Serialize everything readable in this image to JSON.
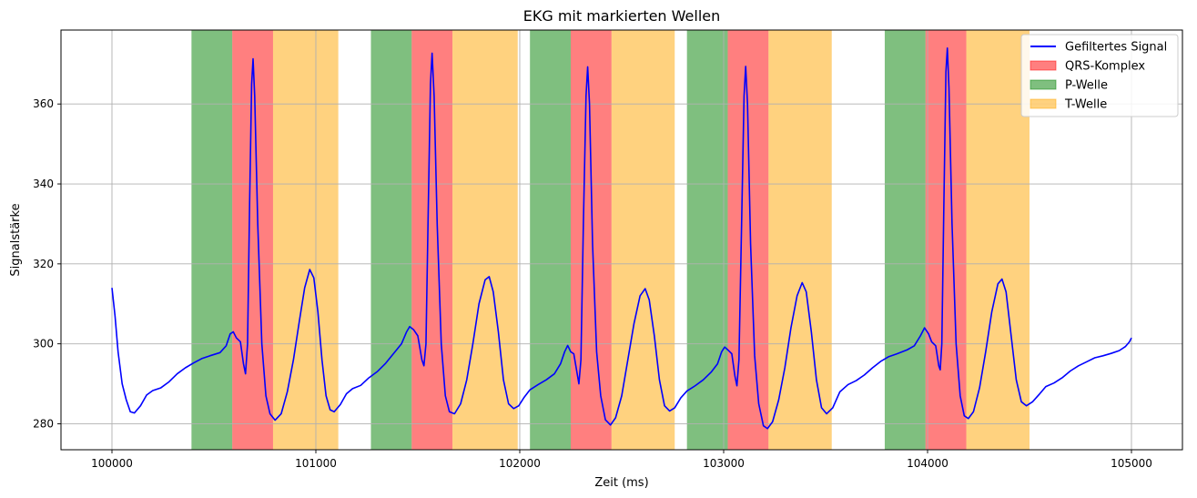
{
  "chart_data": {
    "type": "line",
    "title": "EKG mit markierten Wellen",
    "xlabel": "Zeit (ms)",
    "ylabel": "Signalstärke",
    "xlim": [
      99750,
      105250
    ],
    "ylim": [
      273.5,
      378.5
    ],
    "x_ticks": [
      100000,
      101000,
      102000,
      103000,
      104000,
      105000
    ],
    "x_tick_labels": [
      "100000",
      "101000",
      "102000",
      "103000",
      "104000",
      "105000"
    ],
    "y_ticks": [
      280,
      300,
      320,
      340,
      360
    ],
    "y_tick_labels": [
      "280",
      "300",
      "320",
      "340",
      "360"
    ],
    "grid": true,
    "legend_position": "top-right",
    "legend": [
      {
        "label": "Gefiltertes Signal",
        "kind": "line",
        "color": "#0000ff"
      },
      {
        "label": "QRS-Komplex",
        "kind": "patch",
        "color": "#ff0000",
        "alpha": 0.5
      },
      {
        "label": "P-Welle",
        "kind": "patch",
        "color": "#008000",
        "alpha": 0.5
      },
      {
        "label": "T-Welle",
        "kind": "patch",
        "color": "#ffa500",
        "alpha": 0.5
      }
    ],
    "regions": [
      {
        "name": "P-Welle",
        "color": "#008000",
        "alpha": 0.5,
        "spans": [
          [
            100390,
            100590
          ],
          [
            101270,
            101470
          ],
          [
            102050,
            102250
          ],
          [
            102820,
            103020
          ],
          [
            103790,
            103990
          ]
        ]
      },
      {
        "name": "QRS-Komplex",
        "color": "#ff0000",
        "alpha": 0.5,
        "spans": [
          [
            100590,
            100790
          ],
          [
            101470,
            101670
          ],
          [
            102250,
            102450
          ],
          [
            103020,
            103220
          ],
          [
            103990,
            104190
          ]
        ]
      },
      {
        "name": "T-Welle",
        "color": "#ffa500",
        "alpha": 0.5,
        "spans": [
          [
            100790,
            101110
          ],
          [
            101670,
            101990
          ],
          [
            102450,
            102760
          ],
          [
            103220,
            103530
          ],
          [
            104190,
            104500
          ]
        ]
      }
    ],
    "series": [
      {
        "name": "Gefiltertes Signal",
        "color": "#0000ff",
        "points": [
          [
            100000,
            314
          ],
          [
            100015,
            307
          ],
          [
            100030,
            298
          ],
          [
            100050,
            290
          ],
          [
            100070,
            286
          ],
          [
            100090,
            283
          ],
          [
            100110,
            282.7
          ],
          [
            100140,
            284.5
          ],
          [
            100170,
            287.2
          ],
          [
            100200,
            288.3
          ],
          [
            100240,
            289
          ],
          [
            100280,
            290.5
          ],
          [
            100320,
            292.5
          ],
          [
            100360,
            294
          ],
          [
            100400,
            295.2
          ],
          [
            100440,
            296.3
          ],
          [
            100480,
            297
          ],
          [
            100530,
            297.8
          ],
          [
            100560,
            299.5
          ],
          [
            100580,
            302.5
          ],
          [
            100595,
            303
          ],
          [
            100610,
            301.5
          ],
          [
            100630,
            300.5
          ],
          [
            100645,
            295
          ],
          [
            100655,
            292.5
          ],
          [
            100665,
            300
          ],
          [
            100675,
            335
          ],
          [
            100685,
            365
          ],
          [
            100692,
            371.3
          ],
          [
            100700,
            362
          ],
          [
            100715,
            330
          ],
          [
            100735,
            300
          ],
          [
            100755,
            287
          ],
          [
            100775,
            282.5
          ],
          [
            100800,
            280.9
          ],
          [
            100830,
            282.5
          ],
          [
            100860,
            288
          ],
          [
            100890,
            296
          ],
          [
            100920,
            306
          ],
          [
            100945,
            314
          ],
          [
            100970,
            318.6
          ],
          [
            100990,
            316.5
          ],
          [
            101010,
            308
          ],
          [
            101030,
            296
          ],
          [
            101050,
            287
          ],
          [
            101070,
            283.5
          ],
          [
            101090,
            283
          ],
          [
            101120,
            284.8
          ],
          [
            101150,
            287.5
          ],
          [
            101180,
            288.8
          ],
          [
            101220,
            289.6
          ],
          [
            101260,
            291.5
          ],
          [
            101300,
            293
          ],
          [
            101340,
            295
          ],
          [
            101380,
            297.5
          ],
          [
            101420,
            300
          ],
          [
            101445,
            303
          ],
          [
            101460,
            304.3
          ],
          [
            101480,
            303.5
          ],
          [
            101500,
            302
          ],
          [
            101520,
            296
          ],
          [
            101530,
            294.5
          ],
          [
            101540,
            300
          ],
          [
            101550,
            330
          ],
          [
            101562,
            365
          ],
          [
            101570,
            372.7
          ],
          [
            101580,
            362
          ],
          [
            101595,
            330
          ],
          [
            101615,
            300
          ],
          [
            101635,
            287
          ],
          [
            101655,
            283
          ],
          [
            101680,
            282.5
          ],
          [
            101710,
            285
          ],
          [
            101740,
            291
          ],
          [
            101770,
            300
          ],
          [
            101800,
            310
          ],
          [
            101830,
            316
          ],
          [
            101850,
            316.8
          ],
          [
            101870,
            313
          ],
          [
            101895,
            303
          ],
          [
            101920,
            291
          ],
          [
            101945,
            285
          ],
          [
            101970,
            283.8
          ],
          [
            101995,
            284.5
          ],
          [
            102020,
            286.5
          ],
          [
            102050,
            288.5
          ],
          [
            102090,
            289.8
          ],
          [
            102130,
            291
          ],
          [
            102170,
            292.5
          ],
          [
            102200,
            295
          ],
          [
            102220,
            298
          ],
          [
            102235,
            299.6
          ],
          [
            102250,
            298
          ],
          [
            102265,
            297.5
          ],
          [
            102280,
            293
          ],
          [
            102290,
            290
          ],
          [
            102300,
            296
          ],
          [
            102312,
            330
          ],
          [
            102325,
            362
          ],
          [
            102333,
            369.3
          ],
          [
            102342,
            360
          ],
          [
            102357,
            325
          ],
          [
            102377,
            298
          ],
          [
            102397,
            287
          ],
          [
            102420,
            281
          ],
          [
            102445,
            279.7
          ],
          [
            102470,
            281.5
          ],
          [
            102500,
            287
          ],
          [
            102530,
            296
          ],
          [
            102560,
            305
          ],
          [
            102590,
            312
          ],
          [
            102615,
            313.8
          ],
          [
            102635,
            311
          ],
          [
            102660,
            302
          ],
          [
            102685,
            291
          ],
          [
            102710,
            284.5
          ],
          [
            102735,
            283.2
          ],
          [
            102760,
            284
          ],
          [
            102790,
            286.5
          ],
          [
            102820,
            288.2
          ],
          [
            102860,
            289.5
          ],
          [
            102900,
            291
          ],
          [
            102940,
            293
          ],
          [
            102970,
            295
          ],
          [
            102990,
            298
          ],
          [
            103005,
            299.2
          ],
          [
            103020,
            298.5
          ],
          [
            103040,
            297.5
          ],
          [
            103055,
            292
          ],
          [
            103065,
            289.5
          ],
          [
            103075,
            296
          ],
          [
            103088,
            330
          ],
          [
            103100,
            362
          ],
          [
            103108,
            369.4
          ],
          [
            103117,
            360
          ],
          [
            103132,
            325
          ],
          [
            103152,
            297
          ],
          [
            103172,
            285
          ],
          [
            103195,
            279.5
          ],
          [
            103215,
            278.8
          ],
          [
            103240,
            280.5
          ],
          [
            103270,
            286
          ],
          [
            103300,
            294
          ],
          [
            103330,
            304
          ],
          [
            103360,
            312
          ],
          [
            103385,
            315.3
          ],
          [
            103405,
            313
          ],
          [
            103430,
            303
          ],
          [
            103455,
            291
          ],
          [
            103480,
            284
          ],
          [
            103505,
            282.5
          ],
          [
            103535,
            284
          ],
          [
            103570,
            288
          ],
          [
            103610,
            289.8
          ],
          [
            103650,
            290.8
          ],
          [
            103690,
            292.2
          ],
          [
            103730,
            294
          ],
          [
            103770,
            295.6
          ],
          [
            103810,
            296.8
          ],
          [
            103850,
            297.5
          ],
          [
            103900,
            298.5
          ],
          [
            103935,
            299.5
          ],
          [
            103965,
            302
          ],
          [
            103985,
            304
          ],
          [
            104005,
            302.5
          ],
          [
            104020,
            300.5
          ],
          [
            104040,
            299.5
          ],
          [
            104055,
            294.5
          ],
          [
            104062,
            293.5
          ],
          [
            104070,
            300
          ],
          [
            104080,
            335
          ],
          [
            104090,
            368
          ],
          [
            104097,
            374
          ],
          [
            104105,
            364
          ],
          [
            104120,
            330
          ],
          [
            104140,
            300
          ],
          [
            104160,
            287
          ],
          [
            104180,
            282
          ],
          [
            104200,
            281.3
          ],
          [
            104225,
            283
          ],
          [
            104255,
            289
          ],
          [
            104285,
            298
          ],
          [
            104315,
            308
          ],
          [
            104345,
            315
          ],
          [
            104365,
            316.2
          ],
          [
            104385,
            313
          ],
          [
            104410,
            302
          ],
          [
            104435,
            291
          ],
          [
            104460,
            285.5
          ],
          [
            104485,
            284.5
          ],
          [
            104515,
            285.5
          ],
          [
            104550,
            287.5
          ],
          [
            104580,
            289.3
          ],
          [
            104620,
            290.2
          ],
          [
            104660,
            291.5
          ],
          [
            104700,
            293.2
          ],
          [
            104740,
            294.5
          ],
          [
            104780,
            295.5
          ],
          [
            104820,
            296.5
          ],
          [
            104860,
            297
          ],
          [
            104900,
            297.6
          ],
          [
            104940,
            298.3
          ],
          [
            104970,
            299.3
          ],
          [
            104990,
            300.5
          ],
          [
            105000,
            301.5
          ]
        ]
      }
    ]
  }
}
